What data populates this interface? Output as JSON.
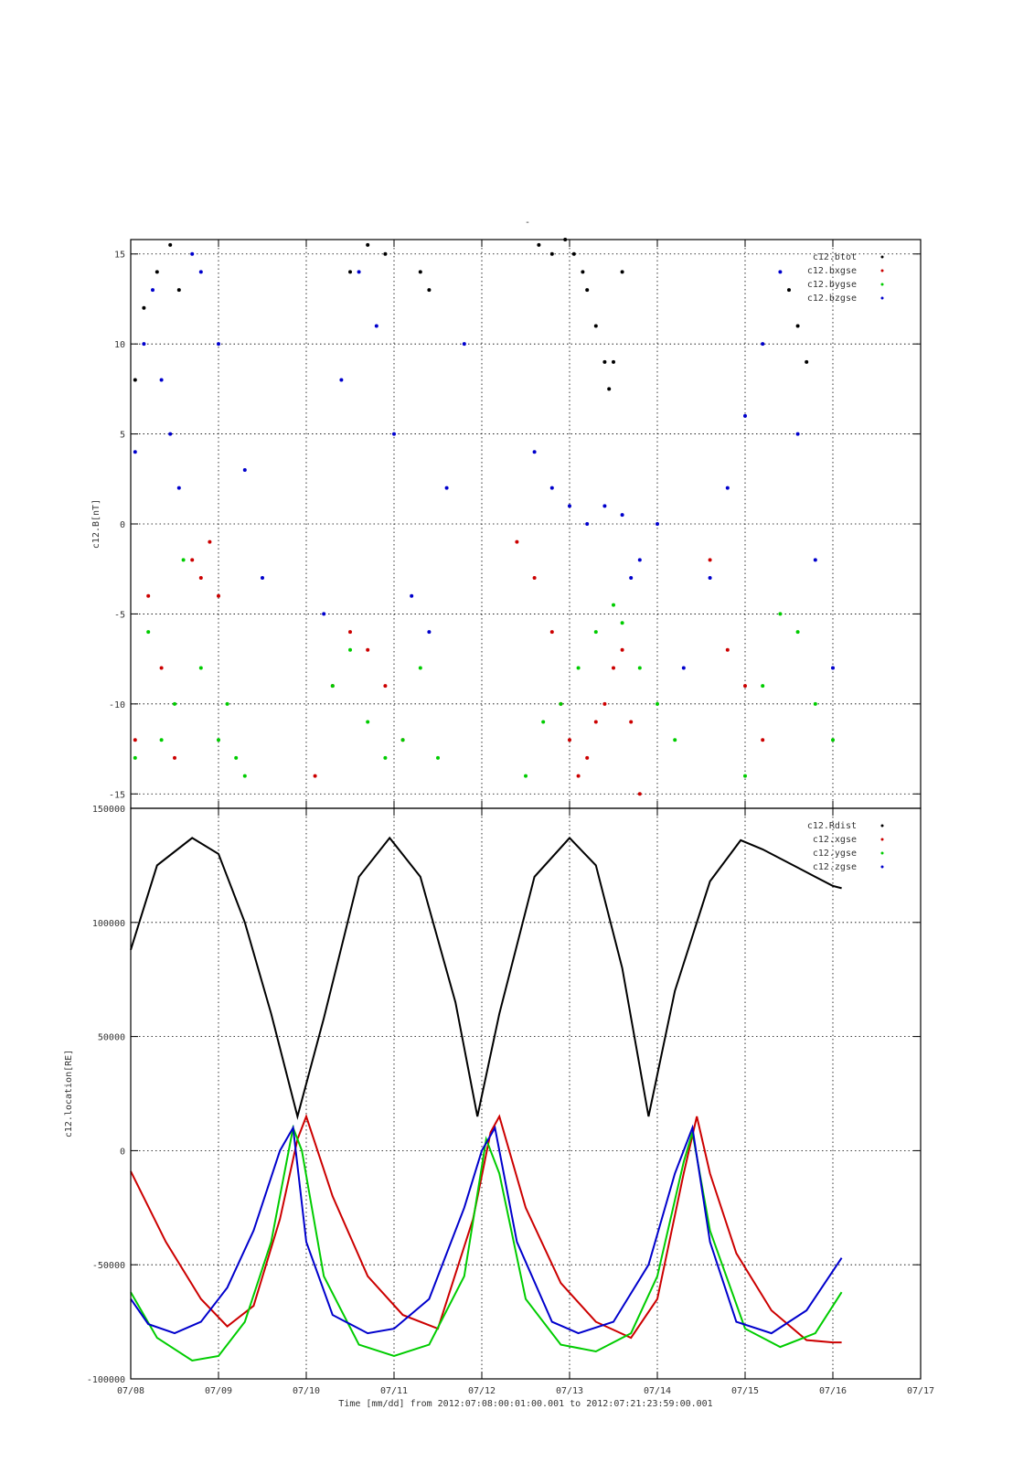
{
  "figure": {
    "top_title": "-",
    "xlabel": "Time [mm/dd]  from 2012:07:08:00:01:00.001  to  2012:07:21:23:59:00.001"
  },
  "chart_data": [
    {
      "type": "scatter",
      "ylabel": "c12.B[nT]",
      "ylim": [
        -15.8,
        15.8
      ],
      "yticks": [
        -15,
        -10,
        -5,
        0,
        5,
        10,
        15
      ],
      "ytick_labels": [
        "-15",
        "-10",
        "-5",
        "0",
        "5",
        "10",
        "15"
      ],
      "xlim": [
        0,
        9
      ],
      "xticks": [
        0,
        1,
        2,
        3,
        4,
        5,
        6,
        7,
        8,
        9
      ],
      "xtick_labels": [
        "07/08",
        "07/09",
        "07/10",
        "07/11",
        "07/12",
        "07/13",
        "07/14",
        "07/15",
        "07/16",
        "07/17"
      ],
      "grid": true,
      "legend_position": "top-right",
      "series": [
        {
          "name": "c12.btot",
          "color": "#000000",
          "x": [
            0.05,
            0.15,
            0.3,
            0.45,
            0.55,
            2.5,
            2.7,
            2.9,
            3.3,
            3.4,
            4.65,
            4.8,
            4.95,
            5.05,
            5.15,
            5.2,
            5.3,
            5.4,
            5.45,
            5.5,
            5.6,
            7.5,
            7.6,
            7.7
          ],
          "y": [
            8,
            12,
            14,
            15.5,
            13,
            14,
            15.5,
            15,
            14,
            13,
            15.5,
            15,
            15.8,
            15,
            14,
            13,
            11,
            9,
            7.5,
            9,
            14,
            13,
            11,
            9
          ]
        },
        {
          "name": "c12.bxgse",
          "color": "#cc0000",
          "x": [
            0.05,
            0.2,
            0.35,
            0.5,
            0.7,
            0.8,
            0.9,
            1.0,
            2.1,
            2.3,
            2.5,
            2.7,
            2.9,
            3.1,
            4.4,
            4.6,
            4.8,
            4.9,
            5.0,
            5.1,
            5.2,
            5.3,
            5.4,
            5.5,
            5.6,
            5.7,
            5.8,
            6.6,
            6.8,
            7.0,
            7.2
          ],
          "y": [
            -12,
            -4,
            -8,
            -13,
            -2,
            -3,
            -1,
            -4,
            -14,
            -9,
            -6,
            -7,
            -9,
            -12,
            -1,
            -3,
            -6,
            -10,
            -12,
            -14,
            -13,
            -11,
            -10,
            -8,
            -7,
            -11,
            -15,
            -2,
            -7,
            -9,
            -12
          ]
        },
        {
          "name": "c12.bygse",
          "color": "#00cc00",
          "x": [
            0.05,
            0.2,
            0.35,
            0.5,
            0.6,
            0.8,
            1.0,
            1.1,
            1.2,
            1.3,
            2.3,
            2.5,
            2.7,
            2.9,
            3.1,
            3.3,
            3.5,
            4.5,
            4.7,
            4.9,
            5.1,
            5.3,
            5.5,
            5.6,
            5.8,
            6.0,
            6.2,
            7.0,
            7.2,
            7.4,
            7.6,
            7.8,
            8.0
          ],
          "y": [
            -13,
            -6,
            -12,
            -10,
            -2,
            -8,
            -12,
            -10,
            -13,
            -14,
            -9,
            -7,
            -11,
            -13,
            -12,
            -8,
            -13,
            -14,
            -11,
            -10,
            -8,
            -6,
            -4.5,
            -5.5,
            -8,
            -10,
            -12,
            -14,
            -9,
            -5,
            -6,
            -10,
            -12
          ]
        },
        {
          "name": "c12.bzgse",
          "color": "#0000cc",
          "x": [
            0.05,
            0.15,
            0.25,
            0.35,
            0.45,
            0.55,
            0.7,
            0.8,
            1.0,
            1.3,
            1.5,
            2.2,
            2.4,
            2.6,
            2.8,
            3.0,
            3.2,
            3.4,
            3.6,
            3.8,
            4.6,
            4.8,
            5.0,
            5.2,
            5.4,
            5.6,
            5.7,
            5.8,
            6.0,
            6.3,
            6.6,
            6.8,
            7.0,
            7.2,
            7.4,
            7.6,
            7.8,
            8.0
          ],
          "y": [
            4,
            10,
            13,
            8,
            5,
            2,
            15,
            14,
            10,
            3,
            -3,
            -5,
            8,
            14,
            11,
            5,
            -4,
            -6,
            2,
            10,
            4,
            2,
            1,
            0,
            1,
            0.5,
            -3,
            -2,
            0,
            -8,
            -3,
            2,
            6,
            10,
            14,
            5,
            -2,
            -8
          ]
        }
      ]
    },
    {
      "type": "line",
      "ylabel": "c12.location[RE]",
      "ylim": [
        -100000,
        150000
      ],
      "yticks": [
        -100000,
        -50000,
        0,
        50000,
        100000,
        150000
      ],
      "ytick_labels": [
        "-100000",
        "-50000",
        "0",
        "50000",
        "100000",
        "150000"
      ],
      "xlim": [
        0,
        9
      ],
      "xticks": [
        0,
        1,
        2,
        3,
        4,
        5,
        6,
        7,
        8,
        9
      ],
      "xtick_labels": [
        "07/08",
        "07/09",
        "07/10",
        "07/11",
        "07/12",
        "07/13",
        "07/14",
        "07/15",
        "07/16",
        "07/17"
      ],
      "grid": true,
      "legend_position": "top-right",
      "series": [
        {
          "name": "c12.Rdist",
          "color": "#000000",
          "x": [
            0,
            0.3,
            0.7,
            1.0,
            1.3,
            1.6,
            1.9,
            2.2,
            2.6,
            2.95,
            3.3,
            3.7,
            3.95,
            4.2,
            4.6,
            5.0,
            5.3,
            5.6,
            5.9,
            6.2,
            6.6,
            6.95,
            7.2,
            7.6,
            8.0,
            8.1
          ],
          "y": [
            88000,
            125000,
            137000,
            130000,
            100000,
            60000,
            15000,
            58000,
            120000,
            137000,
            120000,
            65000,
            15000,
            60000,
            120000,
            137000,
            125000,
            80000,
            15000,
            70000,
            118000,
            136000,
            132000,
            124000,
            116000,
            115000
          ]
        },
        {
          "name": "c12.xgse",
          "color": "#cc0000",
          "x": [
            0,
            0.4,
            0.8,
            1.1,
            1.4,
            1.7,
            1.9,
            2.0,
            2.3,
            2.7,
            3.1,
            3.5,
            3.9,
            4.1,
            4.2,
            4.5,
            4.9,
            5.3,
            5.7,
            6.0,
            6.3,
            6.45,
            6.6,
            6.9,
            7.3,
            7.7,
            8.0,
            8.1
          ],
          "y": [
            -9000,
            -40000,
            -65000,
            -77000,
            -68000,
            -30000,
            5000,
            15000,
            -20000,
            -55000,
            -72000,
            -78000,
            -30000,
            8000,
            15000,
            -25000,
            -58000,
            -75000,
            -82000,
            -65000,
            -10000,
            15000,
            -10000,
            -45000,
            -70000,
            -83000,
            -84000,
            -84000
          ]
        },
        {
          "name": "c12.ygse",
          "color": "#00cc00",
          "x": [
            0,
            0.3,
            0.7,
            1.0,
            1.3,
            1.6,
            1.85,
            1.95,
            2.2,
            2.6,
            3.0,
            3.4,
            3.8,
            4.05,
            4.2,
            4.5,
            4.9,
            5.3,
            5.7,
            6.0,
            6.3,
            6.4,
            6.6,
            7.0,
            7.4,
            7.8,
            8.1
          ],
          "y": [
            -62000,
            -82000,
            -92000,
            -90000,
            -75000,
            -40000,
            10000,
            0,
            -55000,
            -85000,
            -90000,
            -85000,
            -55000,
            5000,
            -10000,
            -65000,
            -85000,
            -88000,
            -80000,
            -55000,
            -5000,
            8000,
            -35000,
            -78000,
            -86000,
            -80000,
            -62000
          ]
        },
        {
          "name": "c12.zgse",
          "color": "#0000cc",
          "x": [
            0,
            0.2,
            0.5,
            0.8,
            1.1,
            1.4,
            1.7,
            1.85,
            2.0,
            2.3,
            2.7,
            3.0,
            3.4,
            3.8,
            4.0,
            4.15,
            4.4,
            4.8,
            5.1,
            5.5,
            5.9,
            6.2,
            6.4,
            6.6,
            6.9,
            7.3,
            7.7,
            8.1
          ],
          "y": [
            -65000,
            -76000,
            -80000,
            -75000,
            -60000,
            -35000,
            0,
            10000,
            -40000,
            -72000,
            -80000,
            -78000,
            -65000,
            -25000,
            0,
            10000,
            -40000,
            -75000,
            -80000,
            -75000,
            -50000,
            -10000,
            10000,
            -40000,
            -75000,
            -80000,
            -70000,
            -47000
          ]
        }
      ]
    }
  ]
}
